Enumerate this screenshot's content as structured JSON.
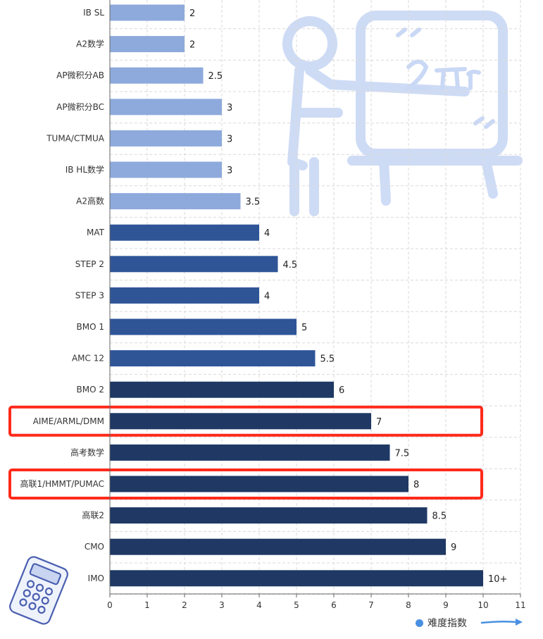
{
  "chart_data": {
    "type": "bar",
    "orientation": "horizontal",
    "categories": [
      "IB SL",
      "A2数学",
      "AP微积分AB",
      "AP微积分BC",
      "TUMA/CTMUA",
      "IB HL数学",
      "A2高数",
      "MAT",
      "STEP 2",
      "STEP 3",
      "BMO 1",
      "AMC 12",
      "BMO 2",
      "AIME/ARML/DMM",
      "高考数学",
      "高联1/HMMT/PUMAC",
      "高联2",
      "CMO",
      "IMO"
    ],
    "values": [
      2,
      2,
      2.5,
      3,
      3,
      3,
      3.5,
      4,
      4.5,
      4,
      5,
      5.5,
      6,
      7,
      7.5,
      8,
      8.5,
      9,
      10
    ],
    "value_labels": [
      "2",
      "2",
      "2.5",
      "3",
      "3",
      "3",
      "3.5",
      "4",
      "4.5",
      "4",
      "5",
      "5.5",
      "6",
      "7",
      "7.5",
      "8",
      "8.5",
      "9",
      "10+"
    ],
    "bar_colors": [
      "#8eaadc",
      "#8eaadc",
      "#8eaadc",
      "#8eaadc",
      "#8eaadc",
      "#8eaadc",
      "#8eaadc",
      "#2f5597",
      "#2f5597",
      "#2f5597",
      "#2f5597",
      "#2f5597",
      "#1f3864",
      "#1f3864",
      "#1f3864",
      "#1f3864",
      "#1f3864",
      "#1f3864",
      "#1f3864"
    ],
    "highlighted_categories": [
      "AIME/ARML/DMM",
      "高联1/HMMT/PUMAC"
    ],
    "highlight_color": "#ff2a1a",
    "xlim": [
      0,
      11
    ],
    "x_ticks": [
      "0",
      "1",
      "2",
      "3",
      "4",
      "5",
      "6",
      "7",
      "8",
      "9",
      "10",
      "11"
    ],
    "grid": true,
    "legend": {
      "label": "难度指数",
      "color": "#4a90e2",
      "placement": "bottom-right"
    },
    "title": "",
    "xlabel": "",
    "ylabel": ""
  }
}
